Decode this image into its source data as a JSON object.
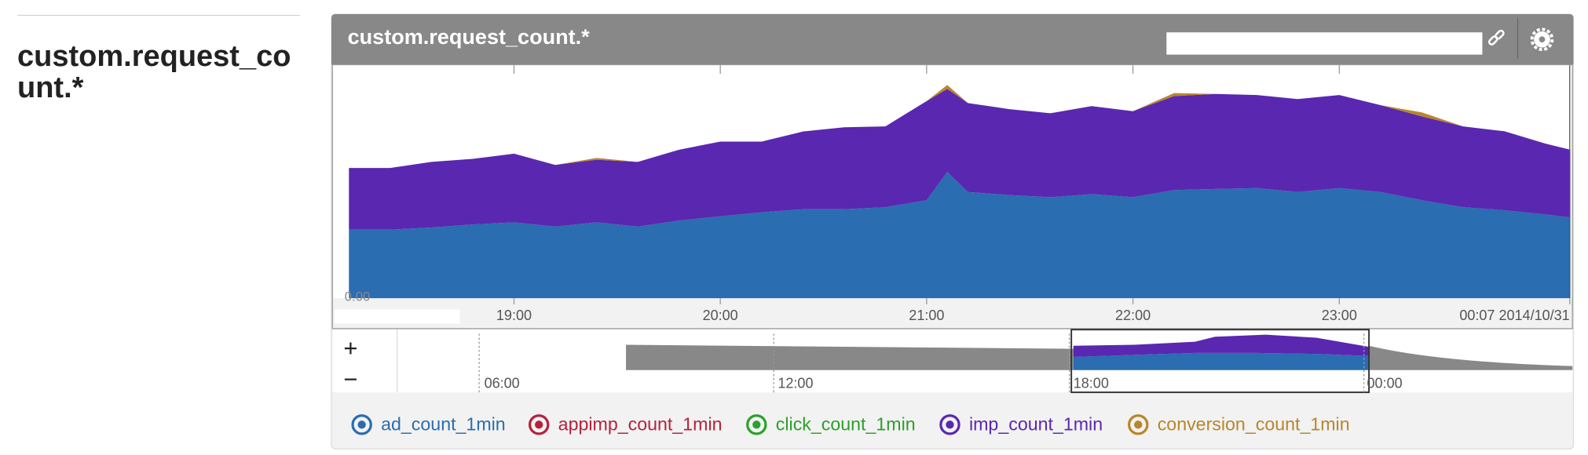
{
  "page": {
    "heading": "custom.request_count.*"
  },
  "panel": {
    "title": "custom.request_count.*"
  },
  "navigator": {
    "zoom_in": "+",
    "zoom_out": "−",
    "xticks": [
      "06:00",
      "12:00",
      "18:00",
      "00:00"
    ]
  },
  "chart_data": {
    "type": "area",
    "stacked": true,
    "x": [
      18.2,
      18.4,
      18.6,
      18.8,
      19.0,
      19.2,
      19.4,
      19.6,
      19.8,
      20.0,
      20.2,
      20.4,
      20.6,
      20.8,
      21.0,
      21.1,
      21.2,
      21.4,
      21.6,
      21.8,
      22.0,
      22.2,
      22.4,
      22.6,
      22.8,
      23.0,
      23.2,
      23.4,
      23.6,
      23.8,
      24.0,
      24.12
    ],
    "series": [
      {
        "name": "ad_count_1min",
        "color": "#2a6db0",
        "values": [
          29.4,
          29.4,
          30.3,
          31.6,
          32.5,
          30.7,
          32.5,
          30.7,
          33.3,
          35.1,
          36.8,
          38.1,
          38.1,
          39.0,
          42.0,
          54.1,
          45.5,
          44.2,
          43.3,
          44.6,
          43.3,
          46.3,
          46.8,
          47.2,
          45.5,
          47.2,
          45.5,
          42.0,
          39.0,
          37.7,
          35.9,
          34.6
        ]
      },
      {
        "name": "appimp_count_1min",
        "color": "#b5223c",
        "values": [
          0,
          0,
          0,
          0,
          0,
          0,
          0,
          0,
          0,
          0,
          0,
          0,
          0,
          0,
          0,
          0,
          0,
          0,
          0,
          0,
          0,
          0,
          0,
          0,
          0,
          0,
          0,
          0,
          0,
          0,
          0,
          0
        ]
      },
      {
        "name": "click_count_1min",
        "color": "#2ca02c",
        "values": [
          0,
          0,
          0,
          0,
          0,
          0,
          0,
          0,
          0,
          0,
          0,
          0,
          0,
          0,
          0,
          0,
          0,
          0,
          0,
          0,
          0,
          0,
          0,
          0,
          0,
          0,
          0,
          0,
          0,
          0,
          0,
          0
        ]
      },
      {
        "name": "imp_count_1min",
        "color": "#5a27b0",
        "values": [
          26.4,
          26.4,
          28.1,
          28.1,
          29.4,
          26.4,
          26.8,
          27.7,
          30.3,
          32.0,
          30.3,
          33.3,
          35.1,
          34.6,
          42.4,
          35.5,
          38.1,
          36.8,
          35.9,
          37.7,
          36.8,
          40.3,
          40.7,
          39.8,
          39.8,
          39.8,
          37.2,
          35.9,
          34.6,
          33.8,
          30.3,
          29.0
        ]
      },
      {
        "name": "conversion_count_1min",
        "color": "#b8862b",
        "values": [
          0,
          0,
          0,
          0,
          0,
          0,
          0.8,
          0,
          0,
          0,
          0,
          0,
          0,
          0,
          0,
          1.7,
          0,
          0,
          0,
          0,
          0,
          1.3,
          0,
          0,
          0,
          0,
          0,
          1.7,
          0,
          0,
          0,
          0
        ]
      }
    ],
    "xlim": [
      18.12,
      24.13
    ],
    "xticks": [
      {
        "value": 19,
        "label": "19:00"
      },
      {
        "value": 20,
        "label": "20:00"
      },
      {
        "value": 21,
        "label": "21:00"
      },
      {
        "value": 22,
        "label": "22:00"
      },
      {
        "value": 23,
        "label": "23:00"
      },
      {
        "value": 24.117,
        "label": "00:07 2014/10/31"
      }
    ],
    "ylim": [
      0,
      100
    ],
    "yticks": [
      {
        "value": 0,
        "label": "0.00"
      }
    ]
  }
}
